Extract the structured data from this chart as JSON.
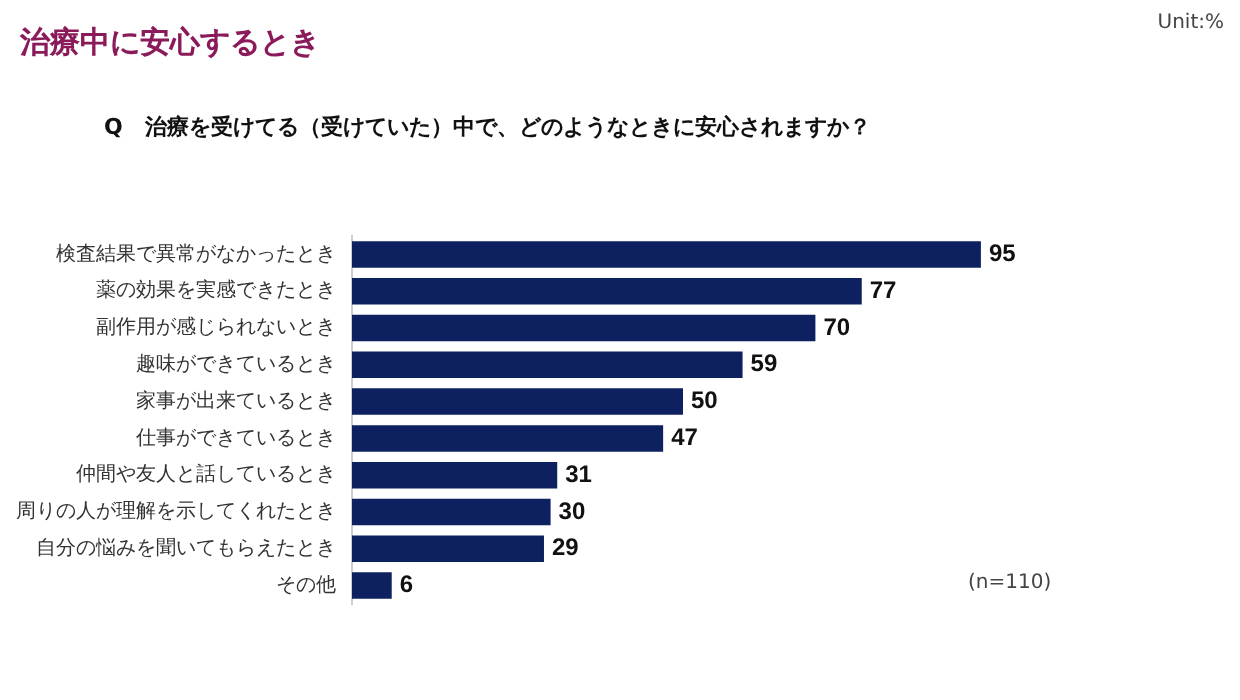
{
  "chart_data": {
    "type": "bar",
    "orientation": "horizontal",
    "title": "治療中に安心するとき",
    "subtitle": "Q　治療を受けてる（受けていた）中で、どのようなときに安心されますか？",
    "categories": [
      "検査結果で異常がなかったとき",
      "薬の効果を実感できたとき",
      "副作用が感じられないとき",
      "趣味ができているとき",
      "家事が出来ているとき",
      "仕事ができているとき",
      "仲間や友人と話しているとき",
      "周りの人が理解を示してくれたとき",
      "自分の悩みを聞いてもらえたとき",
      "その他"
    ],
    "values": [
      95,
      77,
      70,
      59,
      50,
      47,
      31,
      30,
      29,
      6
    ],
    "color": "#0d2160",
    "tick_labels": "y",
    "data_labels": true,
    "annotations": [
      "Unit:%",
      "(n=110)"
    ]
  }
}
